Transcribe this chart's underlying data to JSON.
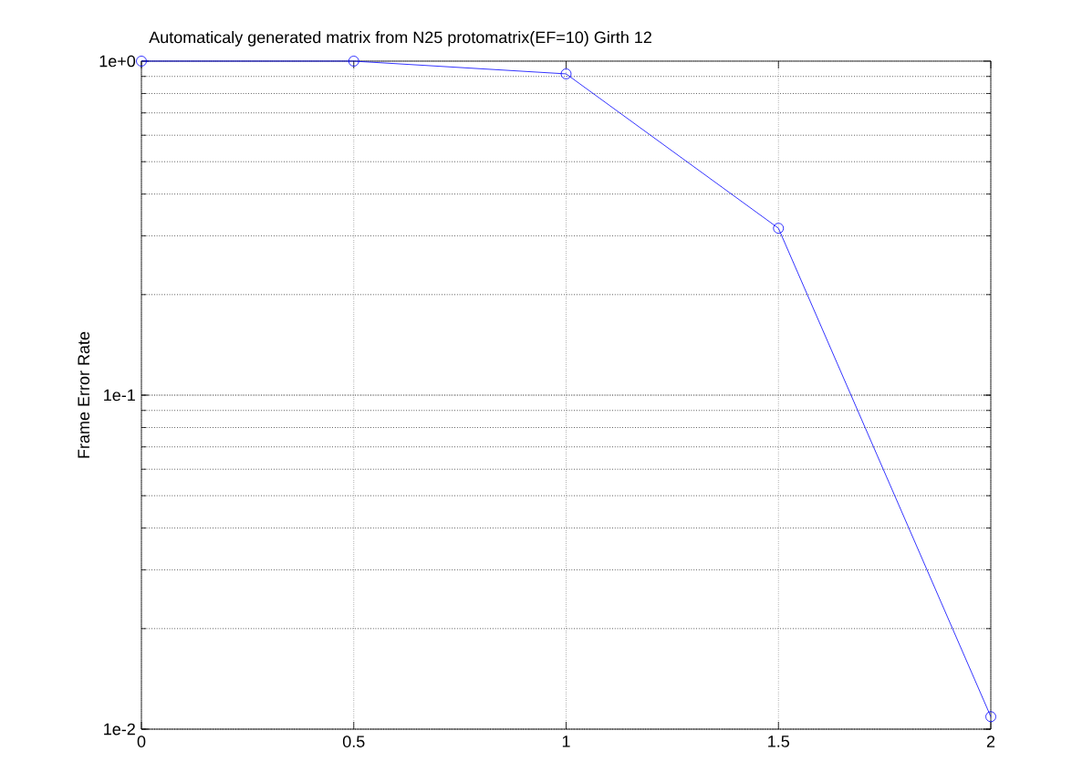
{
  "chart_data": {
    "type": "line",
    "title": "Automaticaly generated matrix from N25 protomatrix(EF=10) Girth 12",
    "ylabel": "Frame Error Rate",
    "x": [
      0,
      0.5,
      1,
      1.5,
      2
    ],
    "series": [
      {
        "color": "#0000ff",
        "values": [
          1.0,
          1.0,
          0.916,
          0.316,
          0.0109
        ]
      }
    ],
    "marker": "circle",
    "line_style": "solid",
    "log": true,
    "grid": true,
    "xlim": [
      0,
      2
    ],
    "ylim": [
      0.01,
      1
    ],
    "xticks": [
      0,
      0.5,
      1,
      1.5,
      2
    ],
    "yticks": [
      {
        "value": 0.01,
        "label": "1e-2"
      },
      {
        "value": 0.1,
        "label": "1e-1"
      },
      {
        "value": 1,
        "label": "1e+0"
      }
    ]
  }
}
